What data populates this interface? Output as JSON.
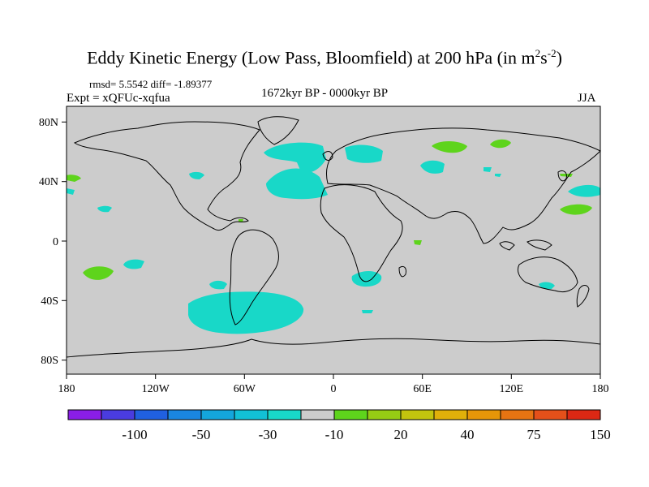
{
  "title_main": "Eddy Kinetic Energy (Low Pass, Bloomfield) at 200 hPa (in m",
  "title_sup1": "2",
  "title_mid": "s",
  "title_sup2": "-2",
  "title_end": ")",
  "stats": "rmsd= 5.5542 diff= -1.89377",
  "experiment": "Expt = xQFUc-xqfua",
  "period": "1672kyr BP - 0000kyr BP",
  "season": "JJA",
  "lat_labels": [
    "80N",
    "40N",
    "0",
    "40S",
    "80S"
  ],
  "lon_labels": [
    "180",
    "120W",
    "60W",
    "0",
    "60E",
    "120E",
    "180"
  ],
  "colorbar": {
    "colors": [
      "#8a1ee6",
      "#4a3ce0",
      "#2060e0",
      "#1a86e0",
      "#14a6dc",
      "#12c0d6",
      "#18d8c8",
      "#cccccc",
      "#5ed41c",
      "#96cc14",
      "#c2c40e",
      "#e0b00a",
      "#e69608",
      "#e67412",
      "#e4501a",
      "#dc2814"
    ],
    "labels": [
      "-100",
      "-50",
      "-30",
      "-10",
      "20",
      "40",
      "75",
      "150"
    ]
  },
  "map": {
    "background": "#cccccc",
    "positive_color": "#5ed41c",
    "negative_color": "#18d8c8"
  }
}
